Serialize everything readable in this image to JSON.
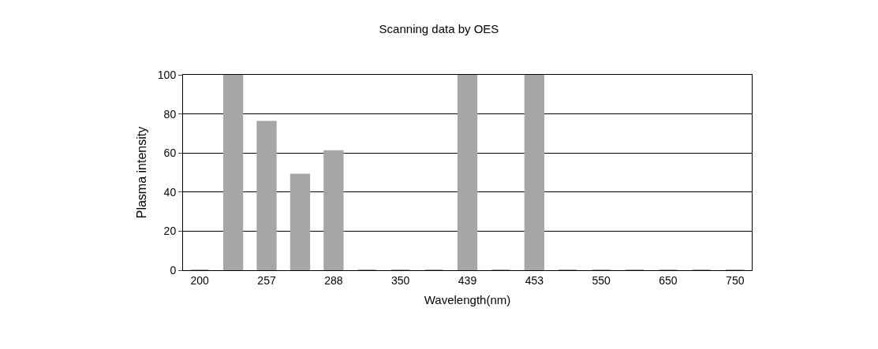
{
  "chart_data": {
    "type": "bar",
    "title": "Scanning data by OES",
    "xlabel": "Wavelength(nm)",
    "ylabel": "Plasma intensity",
    "categories": [
      "200",
      null,
      "257",
      null,
      "288",
      null,
      "350",
      null,
      "439",
      null,
      "453",
      null,
      "550",
      null,
      "650",
      null,
      "750"
    ],
    "values": [
      0,
      100,
      76,
      49,
      61,
      0,
      0,
      0,
      100,
      0,
      100,
      0,
      0,
      0,
      0,
      0,
      0
    ],
    "color": "#a6a6a6",
    "ylim": [
      0,
      100
    ],
    "yticks": [
      0,
      20,
      40,
      60,
      80,
      100
    ],
    "grid": "y"
  }
}
